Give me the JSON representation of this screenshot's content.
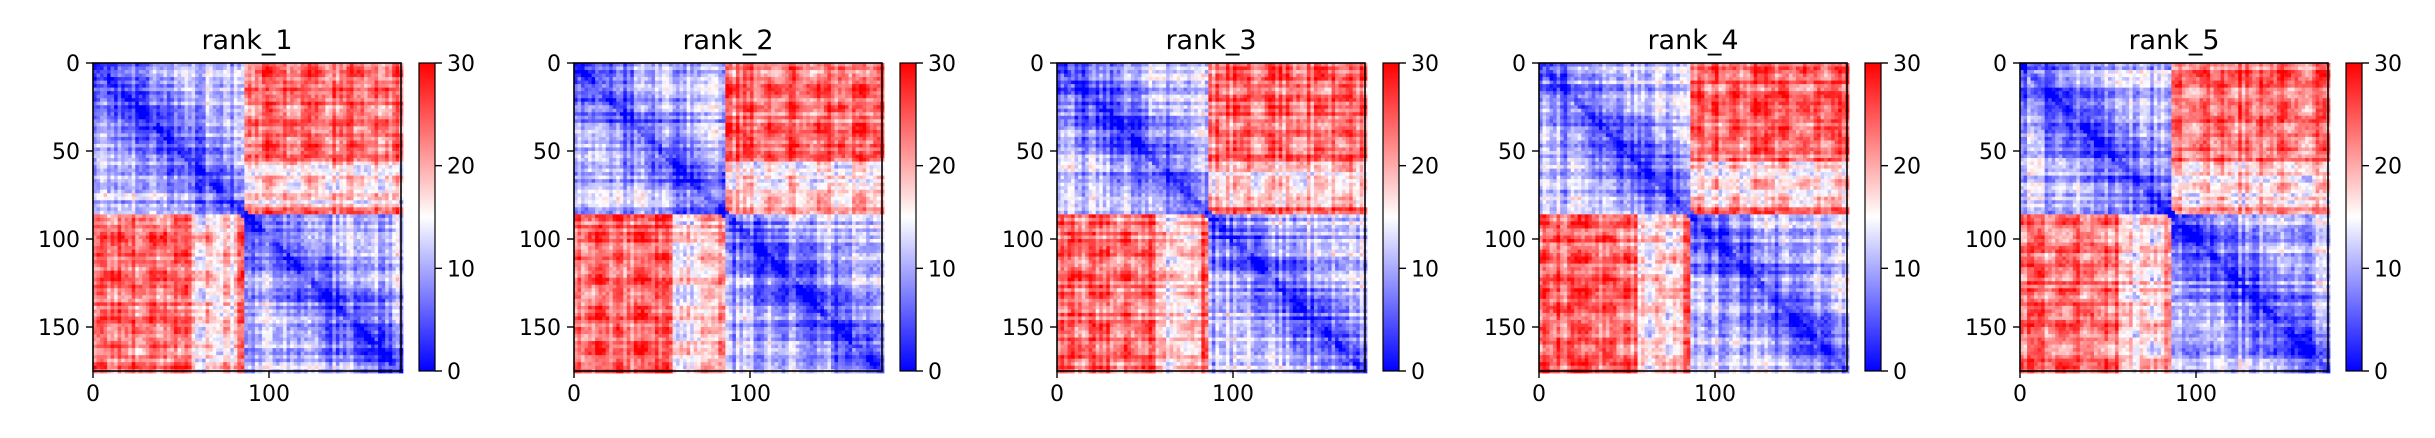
{
  "chart_data": [
    {
      "type": "heatmap",
      "title": "rank_1",
      "x_ticks": [
        0,
        100
      ],
      "y_ticks": [
        0,
        50,
        100,
        150
      ],
      "xlim": [
        0,
        175
      ],
      "ylim": [
        175,
        0
      ],
      "colorbar": {
        "colormap": "bwr",
        "range": [
          0,
          30
        ],
        "ticks": [
          0,
          10,
          20,
          30
        ],
        "low_color": "#0000ff",
        "mid_color": "#ffffff",
        "high_color": "#ff0000"
      },
      "blocks": {
        "domain_boundary": 86,
        "n": 175
      }
    },
    {
      "type": "heatmap",
      "title": "rank_2",
      "x_ticks": [
        0,
        100
      ],
      "y_ticks": [
        0,
        50,
        100,
        150
      ],
      "xlim": [
        0,
        175
      ],
      "ylim": [
        175,
        0
      ],
      "colorbar": {
        "colormap": "bwr",
        "range": [
          0,
          30
        ],
        "ticks": [
          0,
          10,
          20,
          30
        ],
        "low_color": "#0000ff",
        "mid_color": "#ffffff",
        "high_color": "#ff0000"
      },
      "blocks": {
        "domain_boundary": 86,
        "n": 175
      }
    },
    {
      "type": "heatmap",
      "title": "rank_3",
      "x_ticks": [
        0,
        100
      ],
      "y_ticks": [
        0,
        50,
        100,
        150
      ],
      "xlim": [
        0,
        175
      ],
      "ylim": [
        175,
        0
      ],
      "colorbar": {
        "colormap": "bwr",
        "range": [
          0,
          30
        ],
        "ticks": [
          0,
          10,
          20,
          30
        ],
        "low_color": "#0000ff",
        "mid_color": "#ffffff",
        "high_color": "#ff0000"
      },
      "blocks": {
        "domain_boundary": 86,
        "n": 175
      }
    },
    {
      "type": "heatmap",
      "title": "rank_4",
      "x_ticks": [
        0,
        100
      ],
      "y_ticks": [
        0,
        50,
        100,
        150
      ],
      "xlim": [
        0,
        175
      ],
      "ylim": [
        175,
        0
      ],
      "colorbar": {
        "colormap": "bwr",
        "range": [
          0,
          30
        ],
        "ticks": [
          0,
          10,
          20,
          30
        ],
        "low_color": "#0000ff",
        "mid_color": "#ffffff",
        "high_color": "#ff0000"
      },
      "blocks": {
        "domain_boundary": 86,
        "n": 175
      }
    },
    {
      "type": "heatmap",
      "title": "rank_5",
      "x_ticks": [
        0,
        100
      ],
      "y_ticks": [
        0,
        50,
        100,
        150
      ],
      "xlim": [
        0,
        175
      ],
      "ylim": [
        175,
        0
      ],
      "colorbar": {
        "colormap": "bwr",
        "range": [
          0,
          30
        ],
        "ticks": [
          0,
          10,
          20,
          30
        ],
        "low_color": "#0000ff",
        "mid_color": "#ffffff",
        "high_color": "#ff0000"
      },
      "blocks": {
        "domain_boundary": 86,
        "n": 175
      }
    }
  ]
}
